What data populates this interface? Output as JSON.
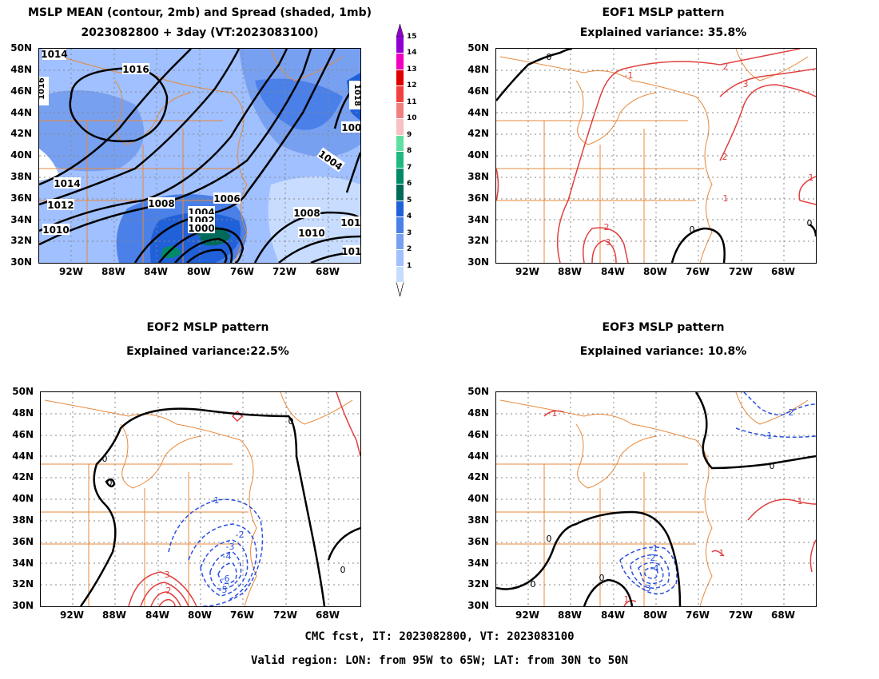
{
  "panels": {
    "mean": {
      "title_line1": "MSLP MEAN (contour, 2mb) and Spread (shaded, 1mb)",
      "title_line2": "2023082800 + 3day (VT:2023083100)",
      "contour_labels": [
        "1016",
        "1014",
        "1012",
        "1010",
        "1008",
        "1006",
        "1004",
        "1002",
        "1000",
        "1004",
        "1006",
        "1008",
        "1010",
        "1010",
        "1012",
        "1014",
        "1016",
        "1018"
      ]
    },
    "eof1": {
      "title_line1": "EOF1 MSLP pattern",
      "title_line2": "Explained variance: 35.8%"
    },
    "eof2": {
      "title_line1": "EOF2 MSLP pattern",
      "title_line2": "Explained variance:22.5%"
    },
    "eof3": {
      "title_line1": "EOF3 MSLP pattern",
      "title_line2": "Explained variance: 10.8%"
    }
  },
  "axes": {
    "lat_labels": [
      "50N",
      "48N",
      "46N",
      "44N",
      "42N",
      "40N",
      "38N",
      "36N",
      "34N",
      "32N",
      "30N"
    ],
    "lon_labels": [
      "92W",
      "88W",
      "84W",
      "80W",
      "76W",
      "72W",
      "68W"
    ]
  },
  "colorbar": {
    "levels": [
      "1",
      "2",
      "3",
      "4",
      "5",
      "6",
      "7",
      "8",
      "9",
      "10",
      "11",
      "12",
      "13",
      "14",
      "15"
    ],
    "colors": [
      "#c8dcff",
      "#a0c0ff",
      "#78a0f0",
      "#4a80e8",
      "#2060d8",
      "#006a5a",
      "#008a66",
      "#20b880",
      "#60e0a0",
      "#f8c0c0",
      "#f08080",
      "#f04040",
      "#e00000",
      "#f000c0",
      "#9000d0"
    ]
  },
  "footer": {
    "line1": "CMC fcst, IT: 2023082800, VT: 2023083100",
    "line2": "Valid region: LON: from 95W to 65W; LAT: from 30N to 50N"
  },
  "colors": {
    "coast": "#e8893a",
    "positive": "#e04040",
    "negative": "#2a50e0",
    "zero": "#000000"
  }
}
